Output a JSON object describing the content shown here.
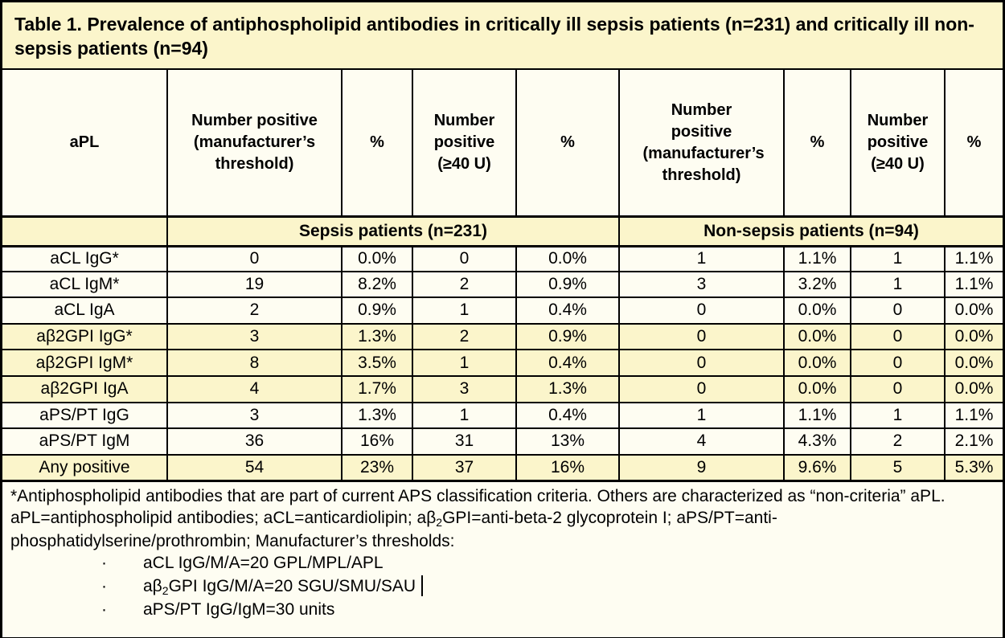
{
  "title": "Table 1. Prevalence of antiphospholipid antibodies in critically ill sepsis patients (n=231) and critically ill non-sepsis patients (n=94)",
  "colors": {
    "highlight_yellow": "#fbf5cb",
    "ivory_background": "#fefdf2",
    "border": "#000000"
  },
  "table": {
    "header_cols": [
      "aPL",
      "Number positive (manufacturer’s threshold)",
      "%",
      "Number positive (≥40 U)",
      "%",
      "Number positive (manufacturer’s threshold)",
      "%",
      "Number positive (≥40 U)",
      "%"
    ],
    "group_sepsis": "Sepsis patients (n=231)",
    "group_non_sepsis": "Non-sepsis patients (n=94)",
    "rows": [
      {
        "label": "aCL IgG*",
        "highlight": false,
        "values": [
          "0",
          "0.0%",
          "0",
          "0.0%",
          "1",
          "1.1%",
          "1",
          "1.1%"
        ]
      },
      {
        "label": "aCL IgM*",
        "highlight": false,
        "values": [
          "19",
          "8.2%",
          "2",
          "0.9%",
          "3",
          "3.2%",
          "1",
          "1.1%"
        ]
      },
      {
        "label": "aCL IgA",
        "highlight": false,
        "values": [
          "2",
          "0.9%",
          "1",
          "0.4%",
          "0",
          "0.0%",
          "0",
          "0.0%"
        ]
      },
      {
        "label": "aβ2GPI IgG*",
        "highlight": true,
        "values": [
          "3",
          "1.3%",
          "2",
          "0.9%",
          "0",
          "0.0%",
          "0",
          "0.0%"
        ]
      },
      {
        "label": "aβ2GPI IgM*",
        "highlight": true,
        "values": [
          "8",
          "3.5%",
          "1",
          "0.4%",
          "0",
          "0.0%",
          "0",
          "0.0%"
        ]
      },
      {
        "label": "aβ2GPI IgA",
        "highlight": true,
        "values": [
          "4",
          "1.7%",
          "3",
          "1.3%",
          "0",
          "0.0%",
          "0",
          "0.0%"
        ]
      },
      {
        "label": "aPS/PT IgG",
        "highlight": false,
        "values": [
          "3",
          "1.3%",
          "1",
          "0.4%",
          "1",
          "1.1%",
          "1",
          "1.1%"
        ]
      },
      {
        "label": "aPS/PT IgM",
        "highlight": false,
        "values": [
          "36",
          "16%",
          "31",
          "13%",
          "4",
          "4.3%",
          "2",
          "2.1%"
        ]
      },
      {
        "label": "Any positive",
        "highlight": true,
        "values": [
          "54",
          "23%",
          "37",
          "16%",
          "9",
          "9.6%",
          "5",
          "5.3%"
        ]
      }
    ]
  },
  "footnotes": {
    "asterisk_note": "*Antiphospholipid antibodies that are part of current APS classification criteria. Others are characterized as “non-criteria” aPL.",
    "abbrev_part1": "aPL=antiphospholipid antibodies; aCL=anticardiolipin; aβ",
    "abbrev_sub": "2",
    "abbrev_part2": "GPI=anti-beta-2 glycoprotein I; aPS/PT=anti-phosphatidylserine/prothrombin; Manufacturer’s thresholds:",
    "bullet_char": "·",
    "bullets": [
      {
        "part1": "aCL IgG/M/A=20 GPL/MPL/APL",
        "sub": "",
        "part2": "",
        "cursor": false
      },
      {
        "part1": "aβ",
        "sub": "2",
        "part2": "GPI IgG/M/A=20 SGU/SMU/SAU",
        "cursor": true
      },
      {
        "part1": "aPS/PT IgG/IgM=30 units",
        "sub": "",
        "part2": "",
        "cursor": false
      }
    ]
  }
}
